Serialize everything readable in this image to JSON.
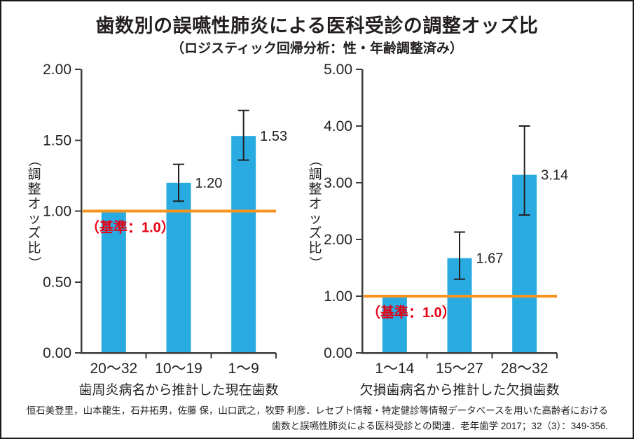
{
  "page": {
    "title": "歯数別の誤嚥性肺炎による医科受診の調整オッズ比",
    "subtitle": "（ロジスティック回帰分析：性・年齢調整済み）",
    "footer_line1": "恒石美登里，山本龍生，石井拓男，佐藤 保，山口武之，牧野 利彦．レセプト情報・特定健診等情報データベースを用いた高齢者における",
    "footer_line2": "歯数と誤嚥性肺炎による医科受診との関連．老年歯学 2017；32（3）：349-356."
  },
  "colors": {
    "bar": "#29ABE2",
    "reference_line": "#F7941E",
    "reference_label": "#E60012",
    "axis": "#3D3D3D",
    "text": "#231F20",
    "error_bar": "#231F20"
  },
  "chart_data": [
    {
      "type": "bar",
      "title": "",
      "categories": [
        "20〜32",
        "10〜19",
        "1〜9"
      ],
      "values": [
        1.0,
        1.2,
        1.53
      ],
      "error_bars": [
        null,
        [
          1.07,
          1.33
        ],
        [
          1.36,
          1.71
        ]
      ],
      "value_labels": [
        null,
        "1.20",
        "1.53"
      ],
      "xlabel": "歯周炎病名から推計した現在歯数",
      "ylabel": "（調整オッズ比）",
      "ylim": [
        0,
        2
      ],
      "yticks": [
        "0.00",
        "0.50",
        "1.00",
        "1.50",
        "2.00"
      ],
      "grid": false,
      "legend": false,
      "reference_line": 1.0,
      "reference_label": "（基準：1.0）"
    },
    {
      "type": "bar",
      "title": "",
      "categories": [
        "1〜14",
        "15〜27",
        "28〜32"
      ],
      "values": [
        1.0,
        1.67,
        3.14
      ],
      "error_bars": [
        null,
        [
          1.3,
          2.13
        ],
        [
          2.43,
          4.0
        ]
      ],
      "value_labels": [
        null,
        "1.67",
        "3.14"
      ],
      "xlabel": "欠損歯病名から推計した欠損歯数",
      "ylabel": "（調整オッズ比）",
      "ylim": [
        0,
        5
      ],
      "yticks": [
        "0.00",
        "1.00",
        "2.00",
        "3.00",
        "4.00",
        "5.00"
      ],
      "grid": false,
      "legend": false,
      "reference_line": 1.0,
      "reference_label": "（基準：1.0）"
    }
  ]
}
